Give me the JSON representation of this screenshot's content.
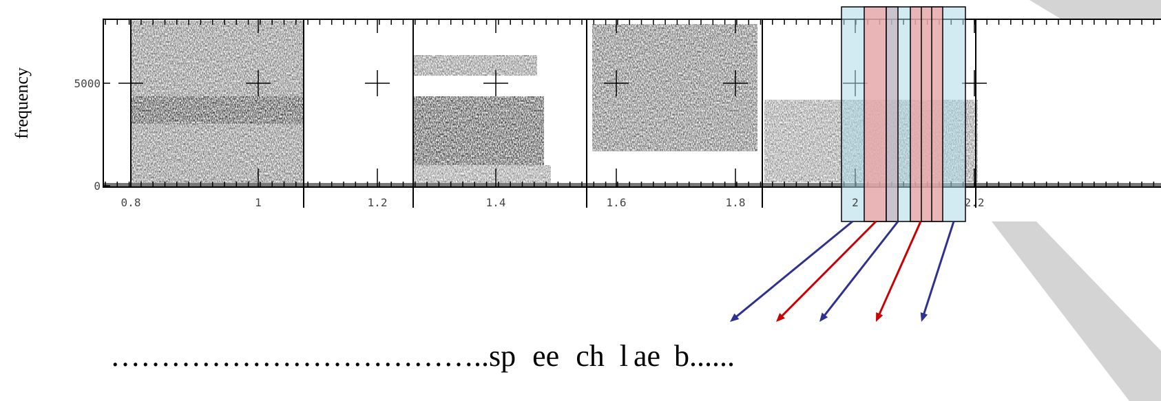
{
  "spectrogram": {
    "y_label": "frequency",
    "y_ticks": [
      "5000",
      "0"
    ],
    "x_ticks": [
      "0.8",
      "1",
      "1.2",
      "1.4",
      "1.6",
      "1.8",
      "2",
      "2.2"
    ]
  },
  "transcript": {
    "lead": "………………………………..",
    "phones": [
      "sp",
      "ee",
      "ch",
      "l",
      "ae",
      "b......"
    ]
  }
}
